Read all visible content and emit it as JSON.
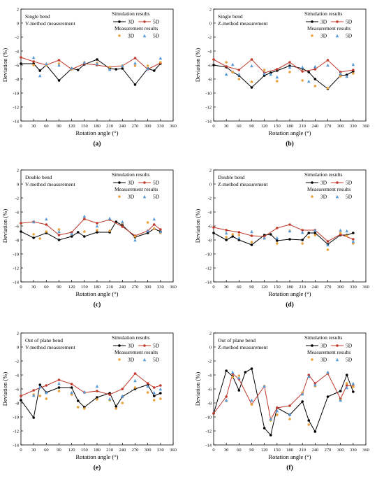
{
  "colors": {
    "sim3d": "#000000",
    "sim5d": "#c0392b",
    "meas3d": "#e8a33c",
    "meas5d": "#5b9bd5"
  },
  "chart_data": [
    {
      "type": "line",
      "panel_label": "(a)",
      "annotation": [
        "Single bend",
        "V-method measurement"
      ],
      "xlabel": "Rotation angle (°)",
      "ylabel": "Deviation (%)",
      "xlim": [
        0,
        360
      ],
      "ylim": [
        -14,
        2
      ],
      "xticks": [
        0,
        30,
        60,
        90,
        120,
        150,
        180,
        210,
        240,
        270,
        300,
        330,
        360
      ],
      "yticks": [
        -14,
        -12,
        -10,
        -8,
        -6,
        -4,
        -2,
        0,
        2
      ],
      "legend": {
        "sim_title": "Simulation results",
        "meas_title": "Measurement results",
        "entry_3d": "3D",
        "entry_5d": "5D"
      },
      "series": [
        {
          "name": "3D",
          "kind": "simulation",
          "x": [
            0,
            30,
            45,
            60,
            90,
            120,
            135,
            150,
            180,
            210,
            225,
            240,
            270,
            300,
            315,
            330
          ],
          "y": [
            -5.8,
            -5.8,
            -6.8,
            -6.0,
            -8.2,
            -6.5,
            -6.7,
            -5.9,
            -5.2,
            -6.5,
            -6.6,
            -6.5,
            -8.8,
            -6.5,
            -6.8,
            -5.8
          ]
        },
        {
          "name": "5D",
          "kind": "simulation",
          "x": [
            0,
            30,
            60,
            90,
            120,
            150,
            180,
            210,
            240,
            270,
            300,
            330
          ],
          "y": [
            -4.9,
            -5.5,
            -6.0,
            -5.3,
            -6.6,
            -5.8,
            -6.0,
            -6.3,
            -6.1,
            -5.0,
            -6.6,
            -5.7
          ]
        },
        {
          "name": "3D",
          "kind": "measurement",
          "x": [
            30,
            60,
            90,
            120,
            150,
            180,
            210,
            240,
            270,
            300,
            330
          ],
          "y": [
            -6.0,
            -6.0,
            -5.8,
            -6.6,
            -5.6,
            -5.7,
            -6.3,
            -6.1,
            -6.1,
            -6.1,
            -5.6
          ]
        },
        {
          "name": "5D",
          "kind": "measurement",
          "x": [
            30,
            45,
            60,
            90,
            120,
            150,
            180,
            210,
            240,
            270,
            300,
            330
          ],
          "y": [
            -4.9,
            -7.5,
            -5.8,
            -6.0,
            -6.4,
            -5.6,
            -5.8,
            -6.6,
            -6.1,
            -5.7,
            -6.5,
            -5.0
          ]
        }
      ]
    },
    {
      "type": "line",
      "panel_label": "(b)",
      "annotation": [
        "Single bend",
        "Z-method measurement"
      ],
      "xlabel": "Rotation angle (°)",
      "ylabel": "Deviation (%)",
      "xlim": [
        0,
        360
      ],
      "ylim": [
        -14,
        2
      ],
      "xticks": [
        0,
        30,
        60,
        90,
        120,
        150,
        180,
        210,
        240,
        270,
        300,
        330,
        360
      ],
      "yticks": [
        -14,
        -12,
        -10,
        -8,
        -6,
        -4,
        -2,
        0,
        2
      ],
      "legend": {
        "sim_title": "Simulation results",
        "meas_title": "Measurement results",
        "entry_3d": "3D",
        "entry_5d": "5D"
      },
      "series": [
        {
          "name": "3D",
          "kind": "simulation",
          "x": [
            0,
            30,
            45,
            60,
            90,
            120,
            135,
            150,
            180,
            210,
            225,
            240,
            270,
            300,
            315,
            330
          ],
          "y": [
            -6.0,
            -6.3,
            -7.0,
            -7.5,
            -9.2,
            -7.5,
            -7.1,
            -6.8,
            -6.1,
            -6.5,
            -7.0,
            -8.0,
            -9.4,
            -7.5,
            -7.4,
            -6.9
          ]
        },
        {
          "name": "5D",
          "kind": "simulation",
          "x": [
            0,
            30,
            60,
            90,
            120,
            150,
            180,
            210,
            240,
            270,
            300,
            330
          ],
          "y": [
            -5.2,
            -6.2,
            -6.7,
            -5.2,
            -7.1,
            -6.6,
            -5.6,
            -6.9,
            -6.6,
            -5.3,
            -7.0,
            -6.7
          ]
        },
        {
          "name": "3D",
          "kind": "measurement",
          "x": [
            30,
            45,
            60,
            90,
            120,
            150,
            180,
            210,
            240,
            270,
            300,
            330
          ],
          "y": [
            -5.6,
            -7.0,
            -8.0,
            -8.4,
            -6.7,
            -8.3,
            -7.0,
            -8.2,
            -9.0,
            -9.3,
            -7.6,
            -7.2
          ]
        },
        {
          "name": "5D",
          "kind": "measurement",
          "x": [
            30,
            45,
            60,
            90,
            120,
            135,
            150,
            180,
            210,
            225,
            240,
            270,
            300,
            315,
            330
          ],
          "y": [
            -7.3,
            -5.9,
            -7.3,
            -6.1,
            -7.2,
            -7.3,
            -7.7,
            -6.3,
            -6.3,
            -8.3,
            -6.2,
            -6.0,
            -7.2,
            -7.6,
            -5.9
          ]
        }
      ]
    },
    {
      "type": "line",
      "panel_label": "(c)",
      "annotation": [
        "Double bend",
        "V-method measurement"
      ],
      "xlabel": "Rotation angle (°)",
      "ylabel": "Deviation (%)",
      "xlim": [
        0,
        360
      ],
      "ylim": [
        -14,
        2
      ],
      "xticks": [
        0,
        30,
        60,
        90,
        120,
        150,
        180,
        210,
        240,
        270,
        300,
        330,
        360
      ],
      "yticks": [
        -14,
        -12,
        -10,
        -8,
        -6,
        -4,
        -2,
        0,
        2
      ],
      "legend": {
        "sim_title": "Simulation results",
        "meas_title": "Measurement results",
        "entry_3d": "3D",
        "entry_5d": "5D"
      },
      "series": [
        {
          "name": "3D",
          "kind": "simulation",
          "x": [
            0,
            30,
            60,
            90,
            120,
            135,
            150,
            180,
            210,
            225,
            240,
            270,
            300,
            315,
            330
          ],
          "y": [
            -6.8,
            -7.7,
            -7.0,
            -8.0,
            -7.5,
            -6.9,
            -7.5,
            -6.9,
            -6.9,
            -5.4,
            -5.9,
            -7.6,
            -7.0,
            -6.4,
            -6.8
          ]
        },
        {
          "name": "5D",
          "kind": "simulation",
          "x": [
            0,
            30,
            60,
            90,
            120,
            150,
            180,
            210,
            240,
            270,
            300,
            315,
            330
          ],
          "y": [
            -5.6,
            -5.4,
            -5.8,
            -7.3,
            -6.9,
            -5.0,
            -5.6,
            -5.1,
            -6.1,
            -7.4,
            -6.7,
            -5.8,
            -6.5
          ]
        },
        {
          "name": "3D",
          "kind": "measurement",
          "x": [
            30,
            45,
            60,
            90,
            120,
            150,
            180,
            210,
            240,
            270,
            300,
            315,
            330
          ],
          "y": [
            -7.2,
            -7.8,
            -6.8,
            -6.5,
            -7.2,
            -6.8,
            -6.6,
            -6.7,
            -5.6,
            -7.5,
            -5.5,
            -6.4,
            -7.0
          ]
        },
        {
          "name": "5D",
          "kind": "measurement",
          "x": [
            30,
            60,
            90,
            120,
            150,
            180,
            210,
            240,
            270,
            300,
            315,
            330
          ],
          "y": [
            -5.4,
            -5.0,
            -6.8,
            -7.1,
            -4.6,
            -6.0,
            -4.9,
            -5.4,
            -8.0,
            -6.7,
            -5.0,
            -6.8
          ]
        }
      ]
    },
    {
      "type": "line",
      "panel_label": "(d)",
      "annotation": [
        "Double bend",
        "Z-method measurement"
      ],
      "xlabel": "Rotation angle (°)",
      "ylabel": "Deviation (%)",
      "xlim": [
        0,
        360
      ],
      "ylim": [
        -14,
        2
      ],
      "xticks": [
        0,
        30,
        60,
        90,
        120,
        150,
        180,
        210,
        240,
        270,
        300,
        330,
        360
      ],
      "yticks": [
        -14,
        -12,
        -10,
        -8,
        -6,
        -4,
        -2,
        0,
        2
      ],
      "legend": {
        "sim_title": "Simulation results",
        "meas_title": "Measurement results",
        "entry_3d": "3D",
        "entry_5d": "5D"
      },
      "series": [
        {
          "name": "3D",
          "kind": "simulation",
          "x": [
            0,
            30,
            45,
            60,
            90,
            120,
            135,
            150,
            180,
            210,
            225,
            240,
            270,
            300,
            315,
            330
          ],
          "y": [
            -7.0,
            -8.0,
            -7.5,
            -8.0,
            -8.7,
            -7.3,
            -7.2,
            -8.1,
            -7.9,
            -8.0,
            -7.0,
            -7.0,
            -8.6,
            -7.3,
            -7.3,
            -7.0
          ]
        },
        {
          "name": "5D",
          "kind": "simulation",
          "x": [
            0,
            30,
            60,
            90,
            120,
            150,
            180,
            210,
            240,
            270,
            300,
            330
          ],
          "y": [
            -6.2,
            -6.6,
            -6.9,
            -7.4,
            -7.5,
            -6.3,
            -5.8,
            -6.6,
            -6.6,
            -8.2,
            -7.2,
            -7.9
          ]
        },
        {
          "name": "3D",
          "kind": "measurement",
          "x": [
            30,
            45,
            60,
            90,
            120,
            150,
            180,
            210,
            225,
            240,
            270,
            300,
            315,
            330
          ],
          "y": [
            -7.6,
            -7.2,
            -7.3,
            -8.3,
            -7.8,
            -8.5,
            -6.7,
            -8.5,
            -7.6,
            -7.3,
            -9.4,
            -7.0,
            -7.4,
            -8.5
          ]
        },
        {
          "name": "5D",
          "kind": "measurement",
          "x": [
            30,
            60,
            90,
            120,
            150,
            180,
            210,
            240,
            270,
            300,
            315,
            330
          ],
          "y": [
            -7.0,
            -7.7,
            -6.8,
            -7.7,
            -7.7,
            -6.7,
            -6.9,
            -6.6,
            -8.7,
            -6.6,
            -6.7,
            -8.2
          ]
        }
      ]
    },
    {
      "type": "line",
      "panel_label": "(e)",
      "annotation": [
        "Out of plane bend",
        "V-method measurement"
      ],
      "xlabel": "Rotation angle (°)",
      "ylabel": "Deviation (%)",
      "xlim": [
        0,
        360
      ],
      "ylim": [
        -14,
        2
      ],
      "xticks": [
        0,
        30,
        60,
        90,
        120,
        150,
        180,
        210,
        240,
        270,
        300,
        330,
        360
      ],
      "yticks": [
        -14,
        -12,
        -10,
        -8,
        -6,
        -4,
        -2,
        0,
        2
      ],
      "legend": {
        "sim_title": "Simulation results",
        "meas_title": "Measurement results",
        "entry_3d": "3D",
        "entry_5d": "5D"
      },
      "series": [
        {
          "name": "3D",
          "kind": "simulation",
          "x": [
            0,
            30,
            45,
            60,
            90,
            120,
            135,
            150,
            180,
            210,
            225,
            240,
            270,
            300,
            315,
            330
          ],
          "y": [
            -7.6,
            -10.1,
            -5.4,
            -6.5,
            -5.8,
            -5.8,
            -7.7,
            -8.6,
            -7.2,
            -6.6,
            -8.5,
            -7.1,
            -6.0,
            -5.4,
            -7.0,
            -6.6
          ]
        },
        {
          "name": "5D",
          "kind": "simulation",
          "x": [
            0,
            30,
            60,
            90,
            120,
            150,
            180,
            210,
            240,
            270,
            300,
            315,
            330
          ],
          "y": [
            -7.0,
            -6.2,
            -5.5,
            -4.7,
            -5.3,
            -6.5,
            -6.3,
            -6.8,
            -6.0,
            -3.8,
            -5.2,
            -5.8,
            -5.5
          ]
        },
        {
          "name": "3D",
          "kind": "measurement",
          "x": [
            30,
            45,
            60,
            90,
            120,
            135,
            150,
            180,
            210,
            225,
            240,
            270,
            300,
            315,
            330
          ],
          "y": [
            -6.8,
            -7.0,
            -7.4,
            -6.3,
            -6.8,
            -8.6,
            -8.8,
            -7.5,
            -7.6,
            -8.8,
            -8.0,
            -5.8,
            -6.5,
            -7.6,
            -7.4
          ]
        },
        {
          "name": "5D",
          "kind": "measurement",
          "x": [
            30,
            45,
            60,
            90,
            120,
            150,
            180,
            210,
            240,
            270,
            300,
            315,
            330
          ],
          "y": [
            -6.9,
            -5.7,
            -6.5,
            -5.2,
            -6.5,
            -6.4,
            -5.6,
            -7.4,
            -7.0,
            -4.8,
            -5.6,
            -6.5,
            -6.0
          ]
        }
      ]
    },
    {
      "type": "line",
      "panel_label": "(f)",
      "annotation": [
        "Out of plane bend",
        "Z-method measurement"
      ],
      "xlabel": "Rotation angle (°)",
      "ylabel": "Deviation (%)",
      "xlim": [
        0,
        360
      ],
      "ylim": [
        -14,
        2
      ],
      "xticks": [
        0,
        30,
        60,
        90,
        120,
        150,
        180,
        210,
        240,
        270,
        300,
        330,
        360
      ],
      "yticks": [
        -14,
        -12,
        -10,
        -8,
        -6,
        -4,
        -2,
        0,
        2
      ],
      "legend": {
        "sim_title": "Simulation results",
        "meas_title": "Measurement results",
        "entry_3d": "3D",
        "entry_5d": "5D"
      },
      "series": [
        {
          "name": "3D",
          "kind": "simulation",
          "x": [
            0,
            30,
            45,
            60,
            75,
            90,
            120,
            135,
            150,
            180,
            210,
            225,
            240,
            270,
            300,
            315,
            330
          ],
          "y": [
            -9.5,
            -3.4,
            -4.2,
            -6.2,
            -3.6,
            -3.1,
            -11.6,
            -12.6,
            -8.7,
            -9.7,
            -7.8,
            -10.5,
            -12.1,
            -7.1,
            -6.3,
            -4.0,
            -6.4
          ]
        },
        {
          "name": "5D",
          "kind": "simulation",
          "x": [
            0,
            30,
            45,
            60,
            90,
            120,
            135,
            150,
            180,
            210,
            225,
            240,
            270,
            300,
            315,
            330
          ],
          "y": [
            -9.5,
            -7.1,
            -3.8,
            -4.6,
            -8.2,
            -5.6,
            -10.4,
            -8.7,
            -8.4,
            -6.6,
            -4.0,
            -5.2,
            -3.8,
            -7.4,
            -5.5,
            -5.6
          ]
        },
        {
          "name": "3D",
          "kind": "measurement",
          "x": [
            30,
            45,
            60,
            90,
            120,
            135,
            150,
            180,
            210,
            225,
            240,
            270,
            300,
            315,
            330
          ],
          "y": [
            -7.7,
            -4.3,
            -4.1,
            -8.2,
            -5.6,
            -10.5,
            -9.7,
            -10.3,
            -6.5,
            -11.1,
            -5.6,
            -3.7,
            -7.6,
            -5.2,
            -5.7
          ]
        },
        {
          "name": "5D",
          "kind": "measurement",
          "x": [
            30,
            45,
            60,
            90,
            120,
            135,
            150,
            180,
            210,
            225,
            240,
            270,
            300,
            315,
            330
          ],
          "y": [
            -7.6,
            -3.6,
            -4.4,
            -7.6,
            -5.6,
            -10.3,
            -9.1,
            -9.6,
            -6.7,
            -4.2,
            -5.4,
            -3.6,
            -7.6,
            -5.8,
            -5.2
          ]
        }
      ]
    }
  ]
}
